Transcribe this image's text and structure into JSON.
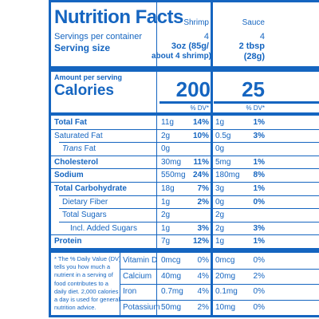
{
  "panel": {
    "title": "Nutrition Facts",
    "servings_per_container_label": "Servings per container",
    "serving_size_label": "Serving size",
    "amount_per_serving_label": "Amount per serving",
    "calories_label": "Calories",
    "dv_header": "% DV*"
  },
  "columns": {
    "shrimp": {
      "name": "Shrimp",
      "servings": "4",
      "serving_size_line1": "3oz (85g/",
      "serving_size_line2": "about 4 shrimp)",
      "calories": "200"
    },
    "sauce": {
      "name": "Sauce",
      "servings": "4",
      "serving_size_line1": "2 tbsp",
      "serving_size_line2": "(28g)",
      "calories": "25"
    }
  },
  "nutrients": [
    {
      "label": "Total Fat",
      "shrimp_amt": "11g",
      "shrimp_dv": "14%",
      "sauce_amt": "1g",
      "sauce_dv": "1%"
    },
    {
      "label": "Saturated Fat",
      "shrimp_amt": "2g",
      "shrimp_dv": "10%",
      "sauce_amt": "0.5g",
      "sauce_dv": "3%"
    },
    {
      "label_italic": "Trans",
      "label_rest": " Fat",
      "shrimp_amt": "0g",
      "shrimp_dv": "",
      "sauce_amt": "0g",
      "sauce_dv": ""
    },
    {
      "label": "Cholesterol",
      "shrimp_amt": "30mg",
      "shrimp_dv": "11%",
      "sauce_amt": "5mg",
      "sauce_dv": "1%"
    },
    {
      "label": "Sodium",
      "shrimp_amt": "550mg",
      "shrimp_dv": "24%",
      "sauce_amt": "180mg",
      "sauce_dv": "8%"
    },
    {
      "label": "Total Carbohydrate",
      "shrimp_amt": "18g",
      "shrimp_dv": "7%",
      "sauce_amt": "3g",
      "sauce_dv": "1%"
    },
    {
      "label": "Dietary Fiber",
      "shrimp_amt": "1g",
      "shrimp_dv": "2%",
      "sauce_amt": "0g",
      "sauce_dv": "0%"
    },
    {
      "label": "Total Sugars",
      "shrimp_amt": "2g",
      "shrimp_dv": "",
      "sauce_amt": "2g",
      "sauce_dv": ""
    },
    {
      "label": "Incl. Added Sugars",
      "shrimp_amt": "1g",
      "shrimp_dv": "3%",
      "sauce_amt": "2g",
      "sauce_dv": "3%"
    },
    {
      "label": "Protein",
      "shrimp_amt": "7g",
      "shrimp_dv": "12%",
      "sauce_amt": "1g",
      "sauce_dv": "1%"
    }
  ],
  "vitamins": [
    {
      "label": "Vitamin D",
      "shrimp_amt": "0mcg",
      "shrimp_dv": "0%",
      "sauce_amt": "0mcg",
      "sauce_dv": "0%"
    },
    {
      "label": "Calcium",
      "shrimp_amt": "40mg",
      "shrimp_dv": "4%",
      "sauce_amt": "20mg",
      "sauce_dv": "2%"
    },
    {
      "label": "Iron",
      "shrimp_amt": "0.7mg",
      "shrimp_dv": "4%",
      "sauce_amt": "0.1mg",
      "sauce_dv": "0%"
    },
    {
      "label": "Potassium",
      "shrimp_amt": "50mg",
      "shrimp_dv": "2%",
      "sauce_amt": "10mg",
      "sauce_dv": "0%"
    }
  ],
  "footnote": [
    "* The % Daily Value (DV)",
    "tells you how much a",
    "nutrient in a serving of",
    "food contributes to a",
    "daily diet. 2,000 calories",
    "a day is used for general",
    "nutrition advice."
  ],
  "colors": {
    "ink": "#1565c0",
    "background": "#ffffff"
  }
}
